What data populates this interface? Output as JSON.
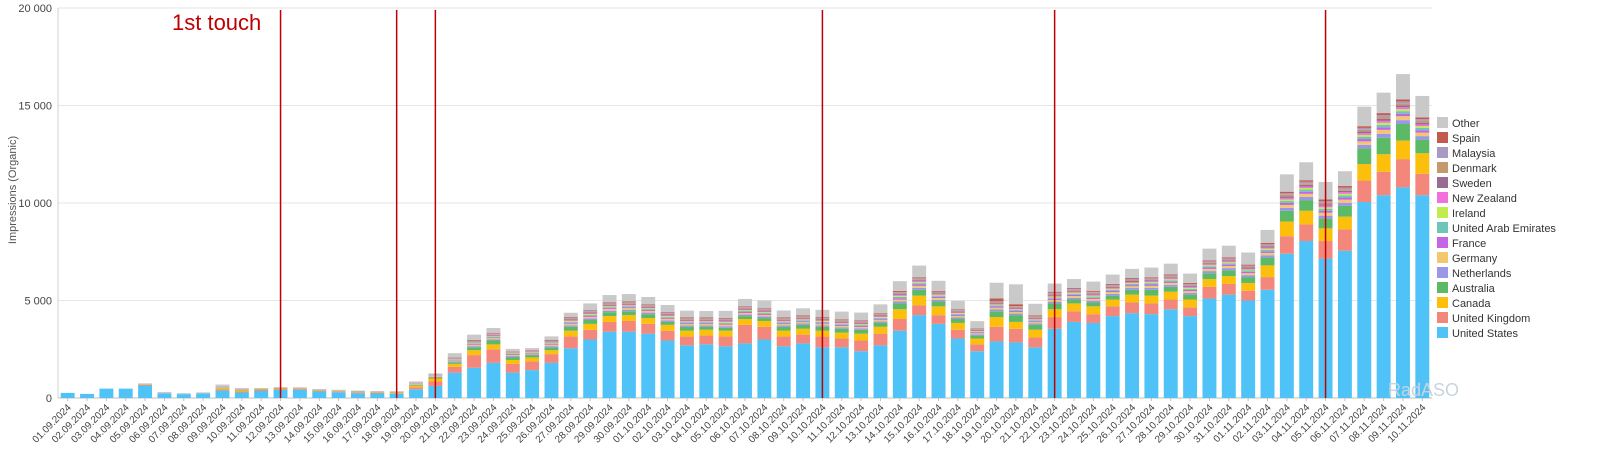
{
  "chart_data": {
    "type": "bar",
    "stacked": true,
    "ylabel": "Impressions (Organic)",
    "ylim": [
      0,
      20000
    ],
    "yticks": [
      0,
      5000,
      10000,
      15000,
      20000
    ],
    "ytick_labels": [
      "0",
      "5 000",
      "10 000",
      "15 000",
      "20 000"
    ],
    "grid": true,
    "legend_position": "right",
    "annotation": "1st touch",
    "watermark": "RadASO",
    "marker_line_color": "#c00000",
    "marker_dates": [
      "12.09.2024",
      "18.09.2024",
      "20.09.2024",
      "10.10.2024",
      "22.10.2024",
      "05.11.2024"
    ],
    "categories": [
      "01.09.2024",
      "02.09.2024",
      "03.09.2024",
      "04.09.2024",
      "05.09.2024",
      "06.09.2024",
      "07.09.2024",
      "08.09.2024",
      "09.09.2024",
      "10.09.2024",
      "11.09.2024",
      "12.09.2024",
      "13.09.2024",
      "14.09.2024",
      "15.09.2024",
      "16.09.2024",
      "17.09.2024",
      "18.09.2024",
      "19.09.2024",
      "20.09.2024",
      "21.09.2024",
      "22.09.2024",
      "23.09.2024",
      "24.09.2024",
      "25.09.2024",
      "26.09.2024",
      "27.09.2024",
      "28.09.2024",
      "29.09.2024",
      "30.09.2024",
      "01.10.2024",
      "02.10.2024",
      "03.10.2024",
      "04.10.2024",
      "05.10.2024",
      "06.10.2024",
      "07.10.2024",
      "08.10.2024",
      "09.10.2024",
      "10.10.2024",
      "11.10.2024",
      "12.10.2024",
      "13.10.2024",
      "14.10.2024",
      "15.10.2024",
      "16.10.2024",
      "17.10.2024",
      "18.10.2024",
      "19.10.2024",
      "20.10.2024",
      "21.10.2024",
      "22.10.2024",
      "23.10.2024",
      "24.10.2024",
      "25.10.2024",
      "26.10.2024",
      "27.10.2024",
      "28.10.2024",
      "29.10.2024",
      "30.10.2024",
      "31.10.2024",
      "01.11.2024",
      "02.11.2024",
      "03.11.2024",
      "04.11.2024",
      "05.11.2024",
      "06.11.2024",
      "07.11.2024",
      "08.11.2024",
      "09.11.2024",
      "10.11.2024"
    ],
    "legend_order": [
      "Other",
      "Spain",
      "Malaysia",
      "Denmark",
      "Sweden",
      "New Zealand",
      "Ireland",
      "United Arab Emirates",
      "France",
      "Germany",
      "Netherlands",
      "Australia",
      "Canada",
      "United Kingdom",
      "United States"
    ],
    "series": [
      {
        "name": "United States",
        "color": "#4fc3f7",
        "values": [
          260,
          210,
          480,
          480,
          640,
          230,
          200,
          230,
          380,
          280,
          360,
          420,
          420,
          330,
          290,
          250,
          230,
          220,
          450,
          620,
          1300,
          1550,
          1800,
          1300,
          1430,
          1800,
          2550,
          3000,
          3400,
          3400,
          3300,
          2950,
          2700,
          2750,
          2650,
          2800,
          3000,
          2650,
          2800,
          2600,
          2600,
          2400,
          2700,
          3450,
          4250,
          3800,
          3050,
          2400,
          2900,
          2850,
          2600,
          3550,
          3900,
          3850,
          4200,
          4350,
          4300,
          4550,
          4200,
          5100,
          5300,
          5000,
          5550,
          7400,
          8050,
          7150,
          7550,
          10050,
          10400,
          10800,
          10400
        ]
      },
      {
        "name": "United Kingdom",
        "color": "#f4877b",
        "values": [
          0,
          0,
          0,
          0,
          40,
          0,
          0,
          0,
          60,
          50,
          50,
          40,
          40,
          40,
          40,
          40,
          40,
          30,
          100,
          230,
          300,
          650,
          700,
          450,
          450,
          450,
          600,
          500,
          500,
          550,
          500,
          500,
          450,
          450,
          500,
          950,
          650,
          500,
          450,
          550,
          450,
          550,
          600,
          600,
          500,
          450,
          450,
          350,
          750,
          700,
          500,
          600,
          550,
          450,
          500,
          550,
          550,
          500,
          450,
          600,
          550,
          500,
          650,
          900,
          850,
          900,
          1100,
          1100,
          1200,
          1450,
          1100
        ]
      },
      {
        "name": "Canada",
        "color": "#fbbf0c",
        "values": [
          0,
          0,
          0,
          0,
          20,
          0,
          0,
          0,
          60,
          60,
          30,
          30,
          20,
          20,
          20,
          20,
          20,
          30,
          90,
          150,
          150,
          250,
          250,
          200,
          200,
          200,
          300,
          300,
          300,
          300,
          300,
          300,
          300,
          300,
          300,
          300,
          300,
          300,
          300,
          300,
          300,
          350,
          350,
          500,
          500,
          450,
          350,
          300,
          500,
          350,
          400,
          400,
          400,
          400,
          350,
          400,
          400,
          400,
          400,
          400,
          400,
          400,
          600,
          750,
          700,
          650,
          650,
          850,
          900,
          950,
          1050
        ]
      },
      {
        "name": "Australia",
        "color": "#5cba67",
        "values": [
          0,
          0,
          0,
          0,
          10,
          0,
          0,
          0,
          30,
          20,
          20,
          20,
          20,
          20,
          20,
          20,
          20,
          20,
          40,
          60,
          80,
          150,
          200,
          150,
          100,
          150,
          200,
          200,
          200,
          200,
          200,
          150,
          200,
          150,
          150,
          150,
          150,
          200,
          200,
          200,
          200,
          200,
          200,
          300,
          300,
          250,
          200,
          150,
          300,
          350,
          250,
          300,
          200,
          200,
          200,
          250,
          300,
          250,
          250,
          300,
          300,
          300,
          400,
          550,
          550,
          500,
          550,
          800,
          850,
          850,
          700
        ]
      },
      {
        "name": "Netherlands",
        "color": "#9b97e8",
        "values": [
          0,
          0,
          0,
          0,
          10,
          0,
          0,
          0,
          20,
          20,
          10,
          10,
          10,
          10,
          10,
          10,
          10,
          10,
          20,
          30,
          40,
          60,
          60,
          50,
          50,
          60,
          80,
          80,
          80,
          80,
          80,
          80,
          70,
          70,
          80,
          80,
          80,
          70,
          70,
          80,
          70,
          70,
          80,
          100,
          100,
          90,
          80,
          60,
          90,
          80,
          70,
          90,
          90,
          90,
          90,
          90,
          100,
          100,
          90,
          110,
          110,
          100,
          120,
          150,
          160,
          150,
          160,
          180,
          200,
          200,
          180
        ]
      },
      {
        "name": "Germany",
        "color": "#f2c76f",
        "values": [
          0,
          0,
          0,
          0,
          10,
          0,
          0,
          0,
          20,
          20,
          10,
          10,
          10,
          10,
          10,
          10,
          10,
          10,
          20,
          30,
          40,
          60,
          60,
          50,
          50,
          60,
          80,
          80,
          80,
          80,
          80,
          80,
          70,
          70,
          80,
          80,
          80,
          70,
          70,
          80,
          70,
          70,
          80,
          100,
          100,
          90,
          80,
          60,
          90,
          80,
          70,
          90,
          90,
          90,
          90,
          90,
          100,
          100,
          90,
          110,
          110,
          100,
          120,
          150,
          160,
          150,
          160,
          180,
          200,
          200,
          180
        ]
      },
      {
        "name": "France",
        "color": "#c465e8",
        "values": [
          0,
          0,
          0,
          0,
          0,
          0,
          0,
          0,
          10,
          10,
          5,
          5,
          5,
          5,
          5,
          5,
          5,
          5,
          10,
          20,
          30,
          40,
          40,
          30,
          30,
          40,
          50,
          50,
          50,
          50,
          50,
          50,
          50,
          50,
          50,
          50,
          50,
          50,
          50,
          50,
          50,
          50,
          50,
          70,
          70,
          60,
          50,
          40,
          60,
          50,
          50,
          60,
          60,
          60,
          60,
          60,
          70,
          70,
          60,
          70,
          70,
          70,
          80,
          100,
          110,
          100,
          110,
          120,
          130,
          130,
          120
        ]
      },
      {
        "name": "United Arab Emirates",
        "color": "#6fc6b8",
        "values": [
          0,
          0,
          0,
          0,
          0,
          0,
          0,
          0,
          10,
          10,
          5,
          5,
          5,
          5,
          5,
          5,
          5,
          5,
          10,
          20,
          30,
          40,
          40,
          30,
          30,
          40,
          50,
          50,
          50,
          50,
          50,
          50,
          50,
          50,
          50,
          50,
          50,
          50,
          50,
          50,
          50,
          50,
          50,
          70,
          70,
          60,
          50,
          40,
          60,
          50,
          50,
          60,
          60,
          60,
          60,
          60,
          70,
          70,
          60,
          70,
          70,
          70,
          80,
          100,
          110,
          100,
          110,
          120,
          130,
          130,
          120
        ]
      },
      {
        "name": "Ireland",
        "color": "#c0ec4e",
        "values": [
          0,
          0,
          0,
          0,
          0,
          0,
          0,
          0,
          10,
          10,
          5,
          5,
          5,
          5,
          5,
          5,
          5,
          5,
          10,
          10,
          20,
          30,
          30,
          20,
          20,
          30,
          40,
          40,
          40,
          40,
          40,
          40,
          40,
          40,
          40,
          40,
          40,
          40,
          40,
          40,
          40,
          40,
          40,
          50,
          50,
          40,
          40,
          30,
          40,
          40,
          40,
          50,
          50,
          50,
          50,
          50,
          50,
          50,
          50,
          50,
          50,
          50,
          60,
          80,
          80,
          80,
          80,
          90,
          100,
          100,
          90
        ]
      },
      {
        "name": "New Zealand",
        "color": "#f26fdc",
        "values": [
          0,
          0,
          0,
          0,
          0,
          0,
          0,
          0,
          10,
          10,
          5,
          5,
          5,
          5,
          5,
          5,
          5,
          5,
          10,
          10,
          20,
          30,
          30,
          20,
          20,
          30,
          40,
          40,
          40,
          40,
          40,
          40,
          40,
          40,
          40,
          40,
          40,
          40,
          40,
          40,
          40,
          40,
          40,
          50,
          50,
          40,
          40,
          30,
          40,
          40,
          40,
          50,
          50,
          50,
          50,
          50,
          50,
          50,
          50,
          50,
          50,
          50,
          60,
          80,
          80,
          80,
          80,
          90,
          100,
          100,
          90
        ]
      },
      {
        "name": "Sweden",
        "color": "#9a6b93",
        "values": [
          0,
          0,
          0,
          0,
          0,
          0,
          0,
          0,
          10,
          10,
          5,
          5,
          5,
          5,
          5,
          5,
          5,
          5,
          10,
          10,
          20,
          30,
          30,
          20,
          20,
          30,
          40,
          40,
          40,
          40,
          40,
          40,
          40,
          40,
          40,
          40,
          40,
          40,
          40,
          40,
          40,
          40,
          40,
          50,
          50,
          40,
          40,
          30,
          40,
          40,
          40,
          50,
          50,
          50,
          50,
          50,
          50,
          50,
          50,
          50,
          50,
          50,
          60,
          80,
          80,
          80,
          80,
          90,
          100,
          100,
          90
        ]
      },
      {
        "name": "Denmark",
        "color": "#c49a6c",
        "values": [
          0,
          0,
          0,
          0,
          0,
          0,
          0,
          0,
          0,
          0,
          0,
          0,
          0,
          0,
          0,
          0,
          0,
          0,
          10,
          10,
          20,
          30,
          30,
          20,
          20,
          30,
          40,
          40,
          40,
          40,
          40,
          40,
          40,
          40,
          40,
          40,
          40,
          40,
          40,
          40,
          40,
          40,
          40,
          50,
          50,
          40,
          40,
          30,
          50,
          40,
          40,
          50,
          50,
          50,
          50,
          50,
          50,
          50,
          50,
          50,
          50,
          50,
          60,
          80,
          80,
          80,
          80,
          90,
          100,
          100,
          90
        ]
      },
      {
        "name": "Malaysia",
        "color": "#a99ac4",
        "values": [
          0,
          0,
          0,
          0,
          0,
          0,
          0,
          0,
          0,
          0,
          0,
          0,
          0,
          0,
          0,
          0,
          0,
          0,
          10,
          10,
          20,
          30,
          30,
          20,
          20,
          30,
          40,
          40,
          40,
          40,
          40,
          40,
          40,
          40,
          40,
          40,
          40,
          40,
          40,
          40,
          40,
          40,
          40,
          50,
          50,
          40,
          40,
          30,
          40,
          40,
          40,
          50,
          50,
          50,
          50,
          50,
          50,
          50,
          50,
          50,
          50,
          50,
          60,
          80,
          80,
          80,
          80,
          90,
          100,
          100,
          90
        ]
      },
      {
        "name": "Spain",
        "color": "#c25a4e",
        "values": [
          0,
          0,
          0,
          0,
          0,
          0,
          0,
          0,
          0,
          0,
          0,
          0,
          0,
          0,
          0,
          0,
          0,
          0,
          10,
          10,
          20,
          30,
          30,
          20,
          20,
          30,
          40,
          40,
          40,
          40,
          40,
          40,
          40,
          40,
          40,
          40,
          40,
          40,
          40,
          40,
          40,
          40,
          40,
          50,
          50,
          40,
          40,
          30,
          150,
          100,
          40,
          50,
          50,
          50,
          50,
          50,
          50,
          50,
          50,
          50,
          50,
          50,
          60,
          80,
          80,
          80,
          80,
          90,
          100,
          100,
          90
        ]
      },
      {
        "name": "Other",
        "color": "#c9c9c9",
        "values": [
          0,
          0,
          0,
          0,
          30,
          80,
          50,
          60,
          70,
          0,
          0,
          0,
          0,
          0,
          0,
          0,
          0,
          0,
          50,
          40,
          210,
          270,
          260,
          140,
          100,
          180,
          220,
          350,
          380,
          380,
          380,
          370,
          350,
          330,
          370,
          380,
          400,
          360,
          370,
          370,
          400,
          400,
          450,
          500,
          600,
          520,
          430,
          360,
          800,
          1020,
          600,
          420,
          450,
          470,
          480,
          470,
          500,
          550,
          480,
          600,
          600,
          620,
          660,
          890,
          920,
          900,
          760,
          1000,
          1050,
          1300,
          1100
        ]
      }
    ]
  }
}
